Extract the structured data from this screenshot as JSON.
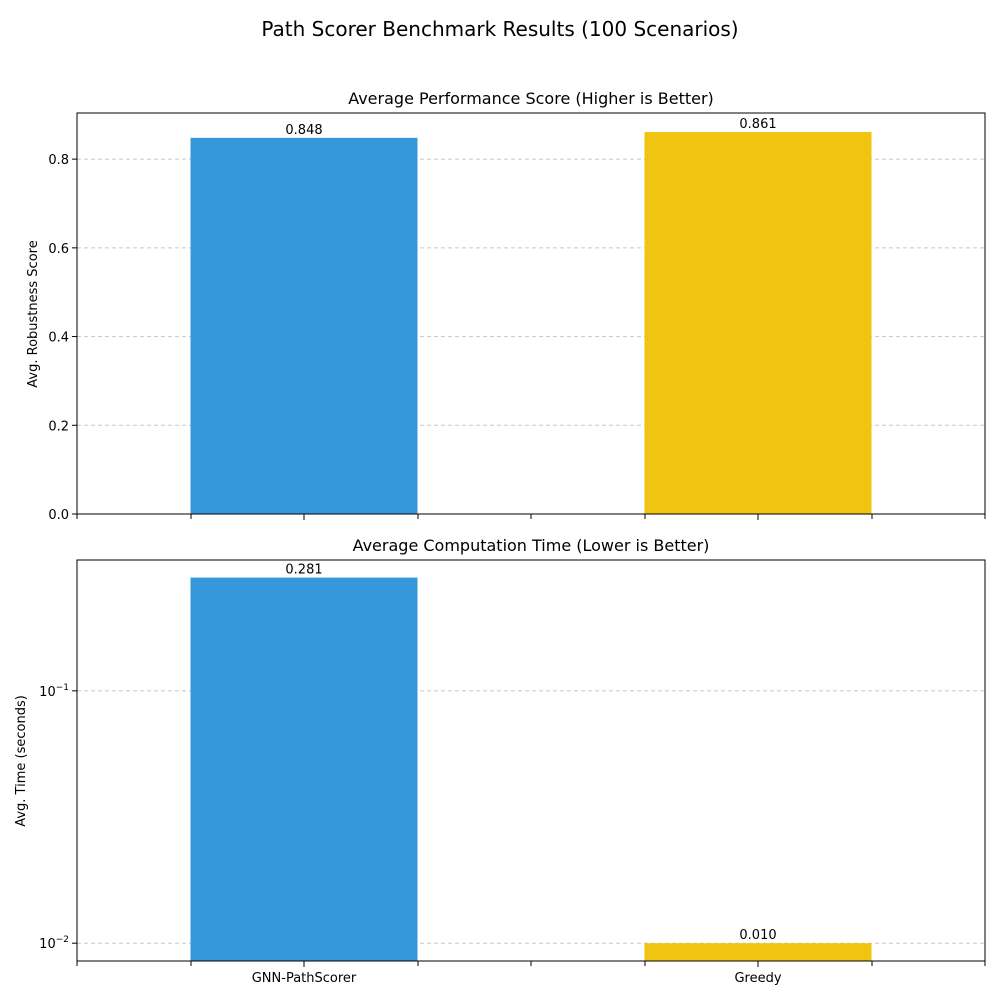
{
  "figure_title": "Path Scorer Benchmark Results (100 Scenarios)",
  "colors": {
    "GNN-PathScorer": "#3498db",
    "Greedy": "#f1c40f"
  },
  "chart_data": [
    {
      "type": "bar",
      "title": "Average Performance Score (Higher is Better)",
      "xlabel": "",
      "ylabel": "Avg. Robustness Score",
      "categories": [
        "GNN-PathScorer",
        "Greedy"
      ],
      "values": [
        0.848,
        0.861
      ],
      "data_labels": [
        "0.848",
        "0.861"
      ],
      "yscale": "linear",
      "ylim": [
        0,
        0.904
      ],
      "yticks": [
        0.0,
        0.2,
        0.4,
        0.6,
        0.8
      ],
      "ytick_labels": [
        "0.0",
        "0.2",
        "0.4",
        "0.6",
        "0.8"
      ],
      "grid": "y-dashed",
      "show_xtick_labels": false
    },
    {
      "type": "bar",
      "title": "Average Computation Time (Lower is Better)",
      "xlabel": "",
      "ylabel": "Avg. Time (seconds)",
      "categories": [
        "GNN-PathScorer",
        "Greedy"
      ],
      "values": [
        0.281,
        0.01
      ],
      "data_labels": [
        "0.281",
        "0.010"
      ],
      "yscale": "log",
      "ylim": [
        0.0085,
        0.33
      ],
      "yticks": [
        0.01,
        0.1
      ],
      "ytick_labels": [
        {
          "base": "10",
          "exp": "−2"
        },
        {
          "base": "10",
          "exp": "−1"
        }
      ],
      "grid": "y-dashed",
      "show_xtick_labels": true
    }
  ]
}
